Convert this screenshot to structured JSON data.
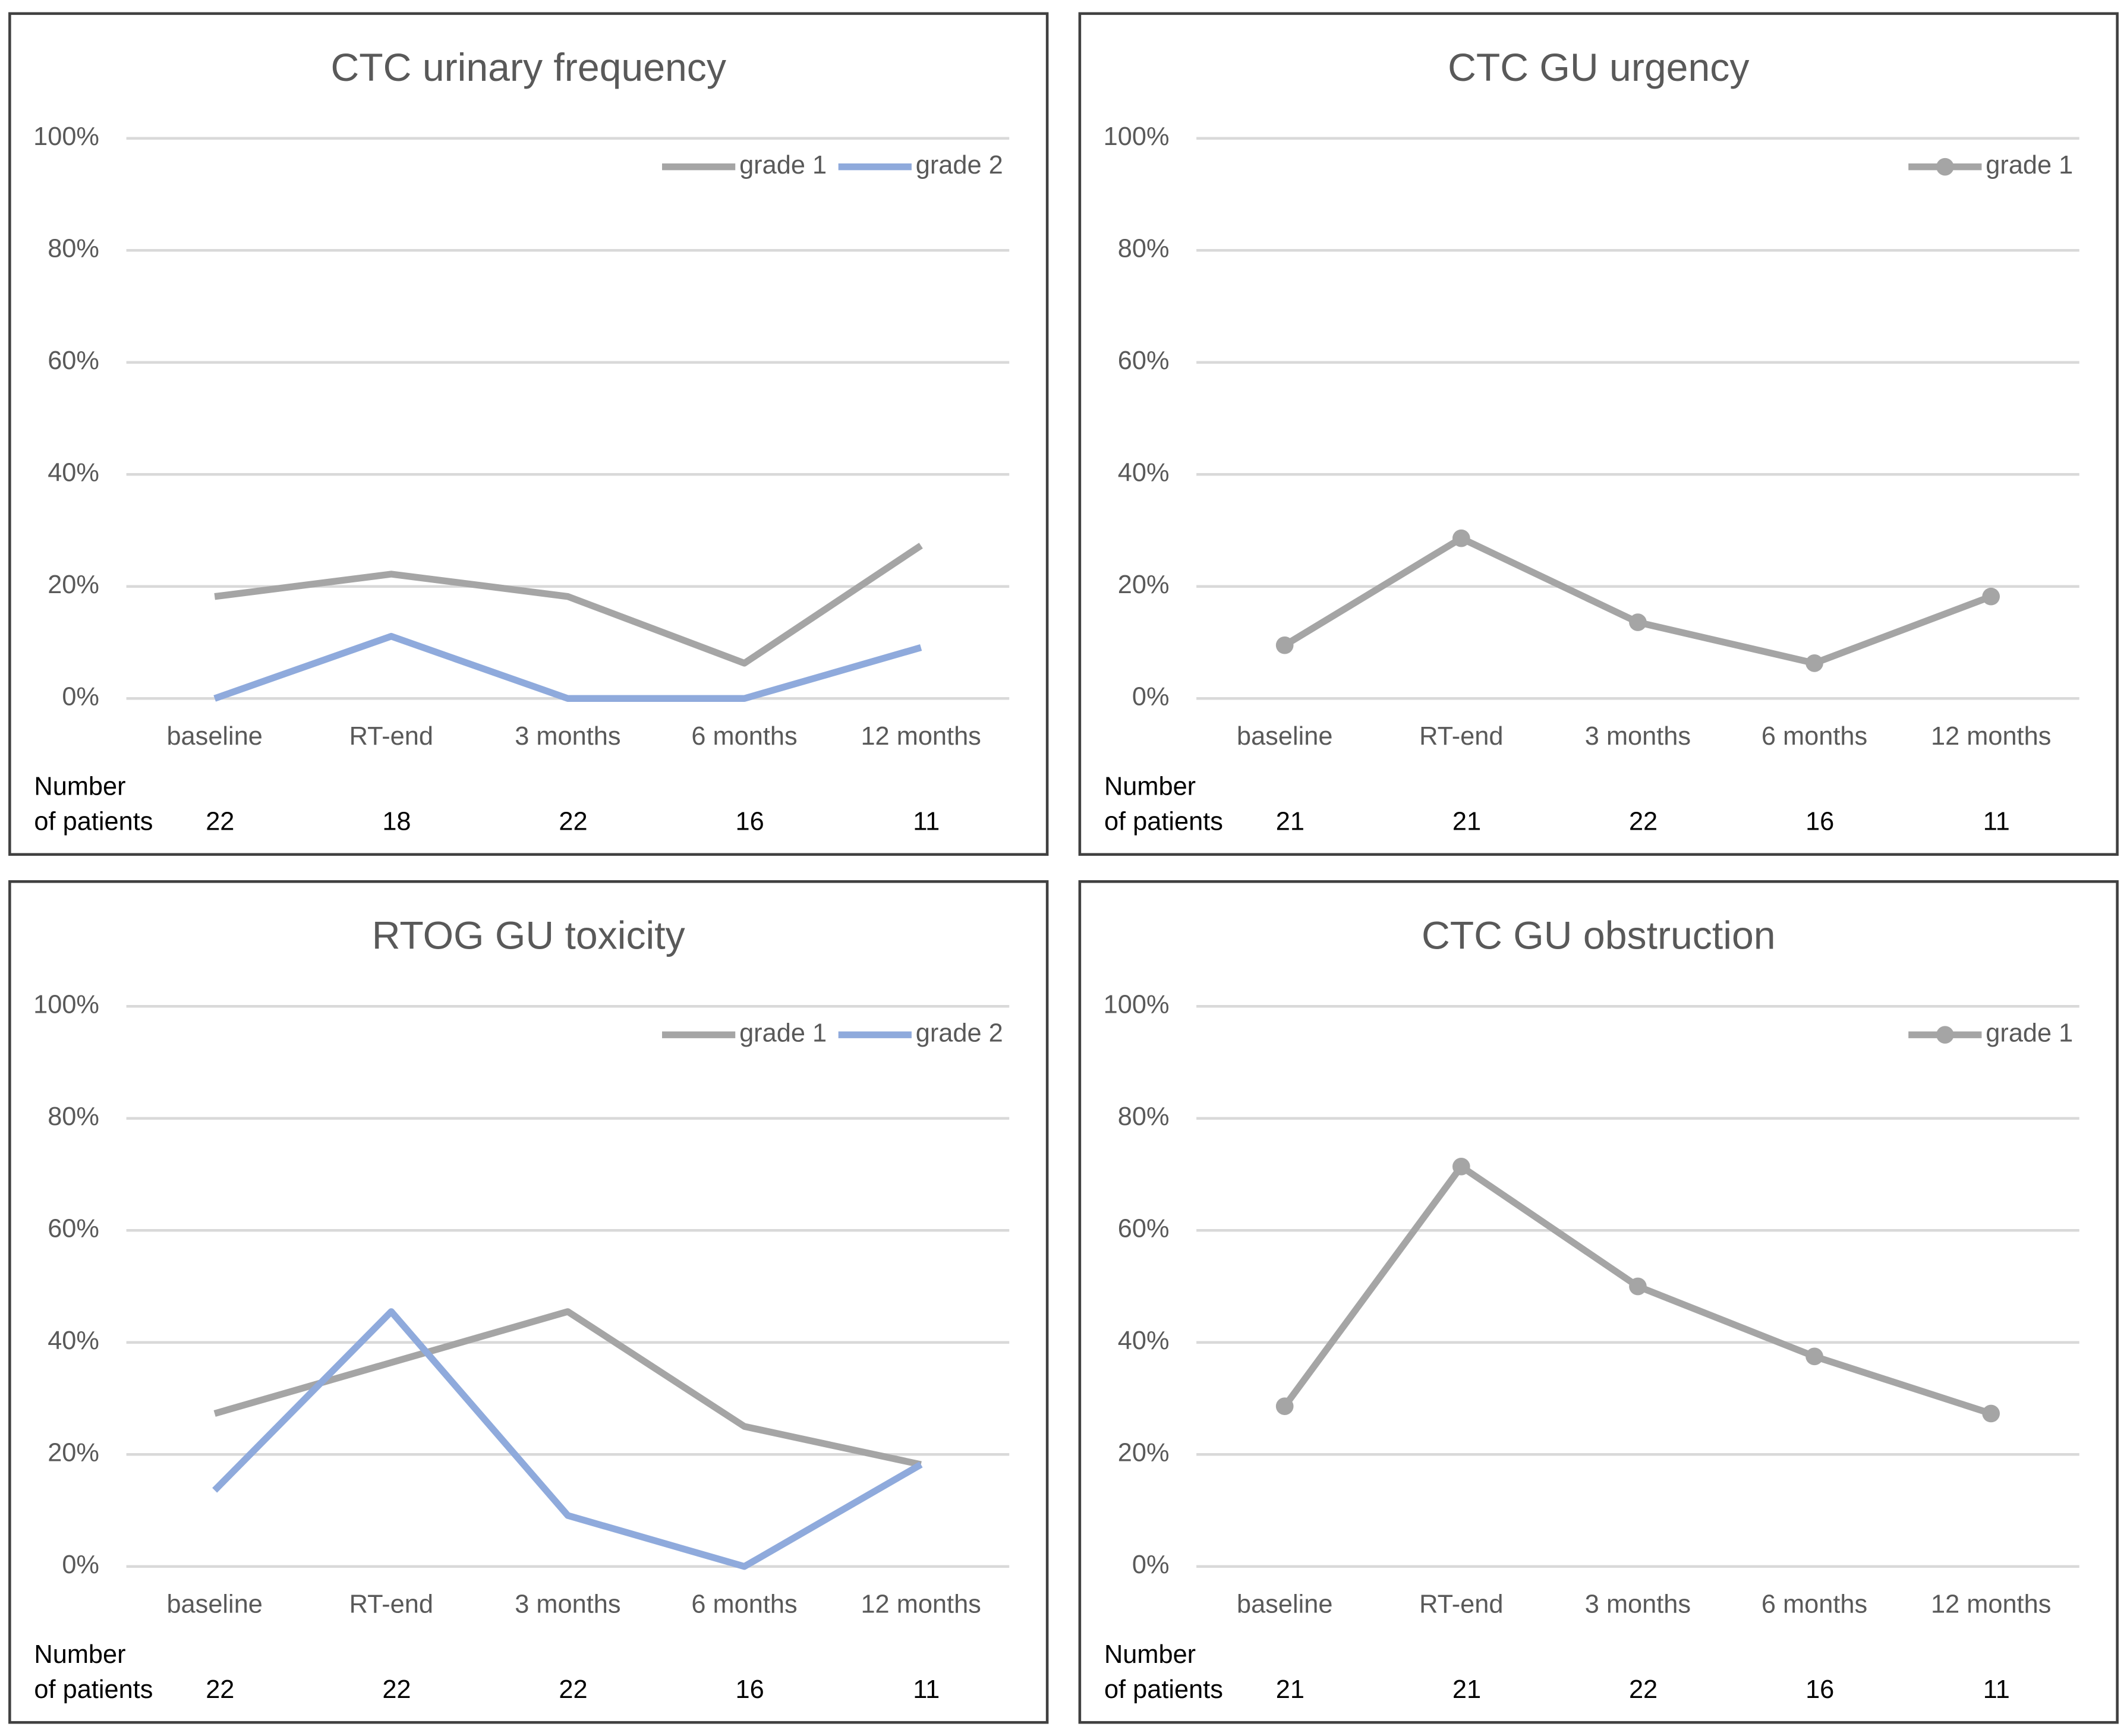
{
  "chart_data": [
    {
      "type": "line",
      "title": "CTC urinary frequency",
      "categories": [
        "baseline",
        "RT-end",
        "3 months",
        "6 months",
        "12 months"
      ],
      "series": [
        {
          "name": "grade 1",
          "color": "#a5a5a5",
          "values": [
            18.2,
            22.2,
            18.2,
            6.3,
            27.3
          ]
        },
        {
          "name": "grade 2",
          "color": "#8faadc",
          "values": [
            0,
            11.1,
            0,
            0,
            9.1
          ]
        }
      ],
      "markers": false,
      "patients_label": [
        "Number",
        "of patients"
      ],
      "patients": [
        22,
        18,
        22,
        16,
        11
      ],
      "ylim": [
        0,
        100
      ],
      "yticks": [
        {
          "value": 0,
          "label": "0%"
        },
        {
          "value": 20,
          "label": "20%"
        },
        {
          "value": 40,
          "label": "40%"
        },
        {
          "value": 60,
          "label": "60%"
        },
        {
          "value": 80,
          "label": "80%"
        },
        {
          "value": 100,
          "label": "100%"
        }
      ],
      "grid": true,
      "legend": "top-right"
    },
    {
      "type": "line",
      "title": "CTC GU urgency",
      "categories": [
        "baseline",
        "RT-end",
        "3 months",
        "6 months",
        "12 months"
      ],
      "series": [
        {
          "name": "grade 1",
          "color": "#a5a5a5",
          "values": [
            9.5,
            28.6,
            13.6,
            6.3,
            18.2
          ]
        }
      ],
      "markers": true,
      "patients_label": [
        "Number",
        "of patients"
      ],
      "patients": [
        21,
        21,
        22,
        16,
        11
      ],
      "ylim": [
        0,
        100
      ],
      "yticks": [
        {
          "value": 0,
          "label": "0%"
        },
        {
          "value": 20,
          "label": "20%"
        },
        {
          "value": 40,
          "label": "40%"
        },
        {
          "value": 60,
          "label": "60%"
        },
        {
          "value": 80,
          "label": "80%"
        },
        {
          "value": 100,
          "label": "100%"
        }
      ],
      "grid": true,
      "legend": "top-right"
    },
    {
      "type": "line",
      "title": "RTOG GU toxicity",
      "categories": [
        "baseline",
        "RT-end",
        "3 months",
        "6 months",
        "12 months"
      ],
      "series": [
        {
          "name": "grade 1",
          "color": "#a5a5a5",
          "values": [
            27.3,
            36.4,
            45.5,
            25,
            18.2
          ]
        },
        {
          "name": "grade 2",
          "color": "#8faadc",
          "values": [
            13.6,
            45.5,
            9.1,
            0,
            18.2
          ]
        }
      ],
      "markers": false,
      "patients_label": [
        "Number",
        "of patients"
      ],
      "patients": [
        22,
        22,
        22,
        16,
        11
      ],
      "ylim": [
        0,
        100
      ],
      "yticks": [
        {
          "value": 0,
          "label": "0%"
        },
        {
          "value": 20,
          "label": "20%"
        },
        {
          "value": 40,
          "label": "40%"
        },
        {
          "value": 60,
          "label": "60%"
        },
        {
          "value": 80,
          "label": "80%"
        },
        {
          "value": 100,
          "label": "100%"
        }
      ],
      "grid": true,
      "legend": "top-right"
    },
    {
      "type": "line",
      "title": "CTC GU obstruction",
      "categories": [
        "baseline",
        "RT-end",
        "3 months",
        "6 months",
        "12 months"
      ],
      "series": [
        {
          "name": "grade 1",
          "color": "#a5a5a5",
          "values": [
            28.6,
            71.4,
            50,
            37.5,
            27.3
          ]
        }
      ],
      "markers": true,
      "patients_label": [
        "Number",
        "of patients"
      ],
      "patients": [
        21,
        21,
        22,
        16,
        11
      ],
      "ylim": [
        0,
        100
      ],
      "yticks": [
        {
          "value": 0,
          "label": "0%"
        },
        {
          "value": 20,
          "label": "20%"
        },
        {
          "value": 40,
          "label": "40%"
        },
        {
          "value": 60,
          "label": "60%"
        },
        {
          "value": 80,
          "label": "80%"
        },
        {
          "value": 100,
          "label": "100%"
        }
      ],
      "grid": true,
      "legend": "top-right"
    }
  ]
}
